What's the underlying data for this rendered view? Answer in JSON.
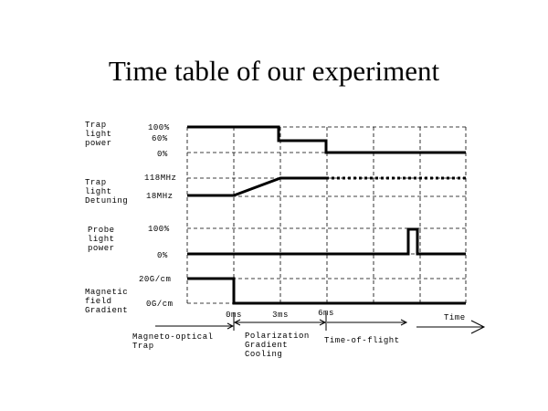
{
  "title": "Time table of our experiment",
  "rows": [
    {
      "label": [
        "Trap",
        "light",
        "power"
      ],
      "levels": [
        "100%",
        "60%",
        "0%"
      ]
    },
    {
      "label": [
        "Trap",
        "light",
        "Detuning"
      ],
      "levels": [
        "118MHz",
        "18MHz"
      ]
    },
    {
      "label": [
        "Probe",
        "light",
        "power"
      ],
      "levels": [
        "100%",
        "0%"
      ]
    },
    {
      "label": [
        "Magnetic",
        "field",
        "Gradient"
      ],
      "levels": [
        "20G/cm",
        "0G/cm"
      ]
    }
  ],
  "time_marks": [
    "0ms",
    "3ms",
    "6ms"
  ],
  "time_axis_label": "Time",
  "phases": [
    {
      "label": [
        "Magneto-optical",
        "Trap"
      ]
    },
    {
      "label": [
        "Polarization",
        "Gradient",
        "Cooling"
      ]
    },
    {
      "label": [
        "Time-of-flight"
      ]
    }
  ]
}
